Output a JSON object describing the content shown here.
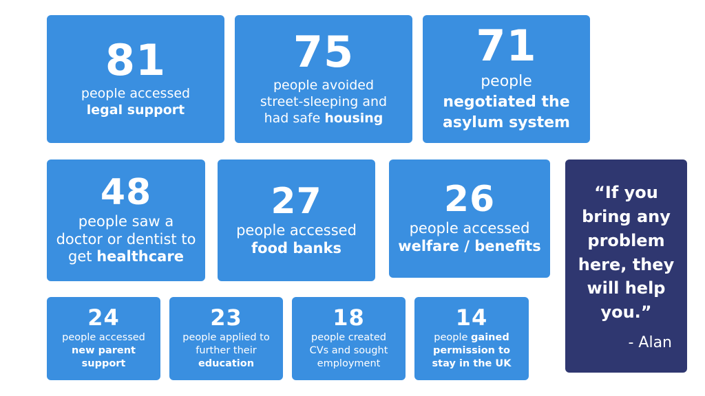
{
  "stats": [
    {
      "number": "81",
      "before": "people accessed",
      "bold": "legal support",
      "after": ""
    },
    {
      "number": "75",
      "before": "people avoided street-sleeping and had safe",
      "bold": "housing",
      "after": ""
    },
    {
      "number": "71",
      "before": "people",
      "bold": "negotiated the asylum system",
      "after": ""
    },
    {
      "number": "48",
      "before": "people saw a doctor or dentist to get",
      "bold": "healthcare",
      "after": ""
    },
    {
      "number": "27",
      "before": "people accessed",
      "bold": "food banks",
      "after": ""
    },
    {
      "number": "26",
      "before": "people accessed",
      "bold": "welfare / benefits",
      "after": ""
    },
    {
      "number": "24",
      "before": "people accessed",
      "bold": "new parent support",
      "after": ""
    },
    {
      "number": "23",
      "before": "people applied to further their",
      "bold": "education",
      "after": ""
    },
    {
      "number": "18",
      "before": "people created CVs and sought employment",
      "bold": "",
      "after": ""
    },
    {
      "number": "14",
      "before": "people",
      "bold": "gained permission to stay in the UK",
      "after": ""
    }
  ],
  "quote": {
    "text": "“If you bring any problem here, they will help you.”",
    "author": "- Alan"
  },
  "colors": {
    "card": "#3a8fe0",
    "quote_card": "#2f3770",
    "text": "#ffffff"
  }
}
